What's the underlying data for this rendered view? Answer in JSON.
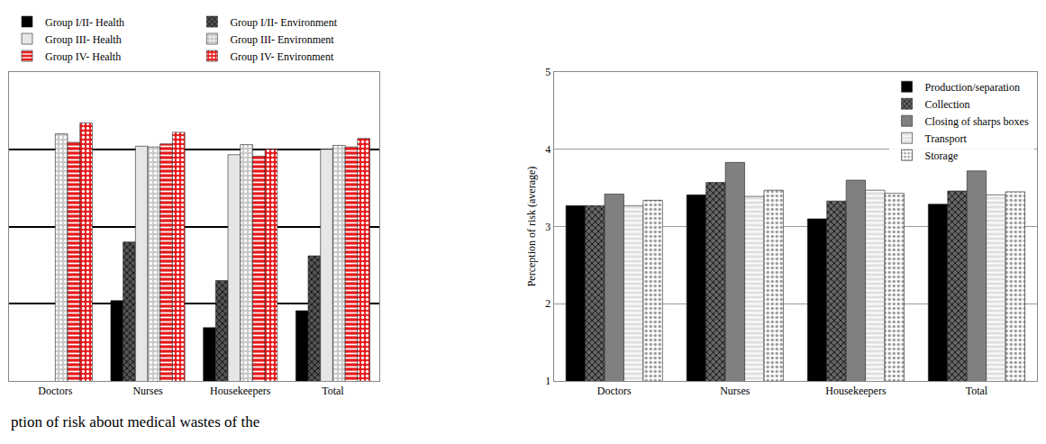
{
  "chart_data": [
    {
      "type": "bar",
      "annotations": [
        "ption of risk about medical wastes of the"
      ],
      "categories": [
        "Doctors",
        "Nurses",
        "Housekeepers",
        "Total"
      ],
      "series": [
        {
          "name": "Group I/II- Health",
          "color": "#000000",
          "marker": "solid",
          "values": [
            null,
            2.04,
            1.69,
            1.91
          ]
        },
        {
          "name": "Group I/II- Environment",
          "color": "#555555",
          "marker": "hatch",
          "values": [
            null,
            2.8,
            2.3,
            2.62
          ]
        },
        {
          "name": "Group III- Health",
          "color": "#e6e6e6",
          "marker": "solid",
          "values": [
            null,
            4.04,
            3.93,
            4.0
          ]
        },
        {
          "name": "Group III- Environment",
          "color": "#c8c8c8",
          "marker": "dots",
          "values": [
            4.2,
            4.03,
            4.06,
            4.05
          ]
        },
        {
          "name": "Group IV- Health",
          "color": "#e8191b",
          "marker": "hlines",
          "values": [
            4.09,
            4.07,
            3.91,
            4.03
          ]
        },
        {
          "name": "Group IV- Environment",
          "color": "#e8191b",
          "marker": "dots",
          "values": [
            4.34,
            4.22,
            4.0,
            4.14
          ]
        }
      ],
      "ylim": [
        1,
        5
      ],
      "yticks": [
        1,
        2,
        3,
        4,
        5
      ],
      "grid": true,
      "tick_labels": "x",
      "legend": "top left"
    },
    {
      "type": "bar",
      "ylabel": "Perception of risk (average)",
      "categories": [
        "Doctors",
        "Nurses",
        "Housekeepers",
        "Total"
      ],
      "series": [
        {
          "name": "Production/separation",
          "color": "#000000",
          "marker": "solid",
          "values": [
            3.27,
            3.41,
            3.1,
            3.29
          ]
        },
        {
          "name": "Collection",
          "color": "#666666",
          "marker": "hatch",
          "values": [
            3.27,
            3.57,
            3.33,
            3.46
          ]
        },
        {
          "name": "Closing of sharps boxes",
          "color": "#808080",
          "marker": "solid",
          "values": [
            3.42,
            3.83,
            3.6,
            3.72
          ]
        },
        {
          "name": "Transport",
          "color": "#e0e0e0",
          "marker": "hlines",
          "values": [
            3.27,
            3.39,
            3.47,
            3.41
          ]
        },
        {
          "name": "Storage",
          "color": "#ffffff",
          "marker": "dots",
          "values": [
            3.34,
            3.47,
            3.43,
            3.45
          ]
        }
      ],
      "ylim": [
        1,
        5
      ],
      "yticks": [
        1,
        2,
        3,
        4,
        5
      ],
      "grid": true,
      "legend": "top right"
    }
  ]
}
